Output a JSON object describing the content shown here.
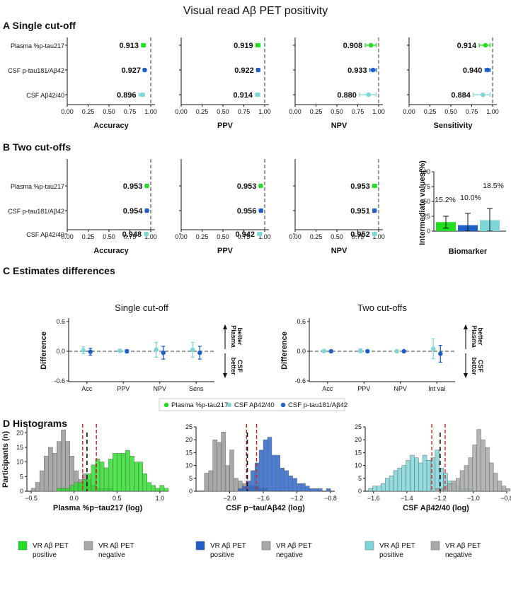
{
  "title": "Visual read Aβ PET positivity",
  "colors": {
    "plasma": "#22dd22",
    "csf_ptau": "#1f5fc8",
    "csf_ab": "#7fd6d9",
    "gray": "#a8a8a8",
    "cutoff_red": "#cc2222",
    "cutoff_black": "#111111"
  },
  "biomarkers": [
    "Plasma %p-tau217",
    "CSF p-tau181/Aβ42",
    "CSF Aβ42/40"
  ],
  "chart_data": [
    {
      "id": "A",
      "type": "scatter",
      "title": "A Single cut-off",
      "rows": [
        "Plasma %p-tau217",
        "CSF p-tau181/Aβ42",
        "CSF Aβ42/40"
      ],
      "xlim": [
        0,
        1
      ],
      "xticks": [
        "0.00",
        "0.25",
        "0.50",
        "0.75",
        "1.00"
      ],
      "reference_line": 1.0,
      "panels": [
        {
          "xlabel": "Accuracy",
          "values": [
            0.913,
            0.927,
            0.896
          ],
          "labels": [
            "0.913",
            "0.927",
            "0.896"
          ],
          "ci_low": [
            0.89,
            0.915,
            0.86
          ],
          "ci_high": [
            0.935,
            0.94,
            0.925
          ]
        },
        {
          "xlabel": "PPV",
          "values": [
            0.919,
            0.922,
            0.914
          ],
          "labels": [
            "0.919",
            "0.922",
            "0.914"
          ],
          "ci_low": [
            0.895,
            0.905,
            0.89
          ],
          "ci_high": [
            0.945,
            0.94,
            0.94
          ]
        },
        {
          "xlabel": "NPV",
          "values": [
            0.908,
            0.933,
            0.88
          ],
          "labels": [
            "0.908",
            "0.933",
            "0.880"
          ],
          "ci_low": [
            0.84,
            0.895,
            0.77
          ],
          "ci_high": [
            0.97,
            0.97,
            0.97
          ]
        },
        {
          "xlabel": "Sensitivity",
          "values": [
            0.914,
            0.94,
            0.884
          ],
          "labels": [
            "0.914",
            "0.940",
            "0.884"
          ],
          "ci_low": [
            0.84,
            0.91,
            0.77
          ],
          "ci_high": [
            0.97,
            0.97,
            0.97
          ]
        }
      ]
    },
    {
      "id": "B",
      "type": "scatter",
      "title": "B Two cut-offs",
      "rows": [
        "Plasma %p-tau217",
        "CSF p-tau181/Aβ42",
        "CSF Aβ42/40"
      ],
      "xlim": [
        0,
        1
      ],
      "xticks": [
        "0.00",
        "0.25",
        "0.50",
        "0.75",
        "1.00"
      ],
      "reference_line": 1.0,
      "panels": [
        {
          "xlabel": "Accuracy",
          "values": [
            0.953,
            0.954,
            0.948
          ],
          "labels": [
            "0.953",
            "0.954",
            "0.948"
          ],
          "ci_low": [
            0.935,
            0.935,
            0.925
          ],
          "ci_high": [
            0.97,
            0.97,
            0.965
          ]
        },
        {
          "xlabel": "PPV",
          "values": [
            0.953,
            0.956,
            0.942
          ],
          "labels": [
            "0.953",
            "0.956",
            "0.942"
          ],
          "ci_low": [
            0.935,
            0.935,
            0.915
          ],
          "ci_high": [
            0.97,
            0.975,
            0.965
          ]
        },
        {
          "xlabel": "NPV",
          "values": [
            0.953,
            0.951,
            0.952
          ],
          "labels": [
            "0.953",
            "0.951",
            "0.952"
          ],
          "ci_low": [
            0.93,
            0.93,
            0.93
          ],
          "ci_high": [
            0.975,
            0.97,
            0.975
          ]
        }
      ]
    },
    {
      "id": "B-bar",
      "type": "bar",
      "ylabel": "Intermediate values(%)",
      "xlabel": "Biomarker",
      "categories": [
        "Plasma %p-tau217",
        "CSF p-tau181/Aβ42",
        "CSF Aβ42/40"
      ],
      "values": [
        15.2,
        10.0,
        18.5
      ],
      "labels": [
        "15.2%",
        "10.0%",
        "18.5%"
      ],
      "ci_low": [
        5,
        0,
        0
      ],
      "ci_high": [
        25,
        30,
        38
      ],
      "ylim": [
        0,
        100
      ],
      "yticks": [
        0,
        25,
        50,
        75,
        100
      ]
    },
    {
      "id": "C",
      "type": "scatter",
      "title": "C Estimates differences",
      "ylabel": "Difference",
      "ylim": [
        -0.6,
        0.6
      ],
      "yticks": [
        "0.6",
        "0.0",
        "-0.6"
      ],
      "arrow_up": "Plasma better",
      "arrow_down": "CSF better",
      "panels": [
        {
          "subtitle": "Single cut-off",
          "categories": [
            "Acc",
            "PPV",
            "NPV",
            "Sens"
          ],
          "csf_ab": [
            0.02,
            0.01,
            0.03,
            0.03
          ],
          "csf_ab_low": [
            -0.05,
            -0.02,
            -0.12,
            -0.12
          ],
          "csf_ab_high": [
            0.09,
            0.04,
            0.18,
            0.18
          ],
          "csf_ptau": [
            -0.01,
            0.0,
            -0.03,
            -0.03
          ],
          "csf_ptau_low": [
            -0.08,
            -0.03,
            -0.16,
            -0.16
          ],
          "csf_ptau_high": [
            0.06,
            0.03,
            0.1,
            0.1
          ]
        },
        {
          "subtitle": "Two cut-offs",
          "categories": [
            "Acc",
            "PPV",
            "NPV",
            "Int val"
          ],
          "csf_ab": [
            0.005,
            0.01,
            0.0,
            0.05
          ],
          "csf_ab_low": [
            -0.02,
            -0.03,
            -0.02,
            -0.15
          ],
          "csf_ab_high": [
            0.03,
            0.05,
            0.02,
            0.25
          ],
          "csf_ptau": [
            0.0,
            0.0,
            0.0,
            -0.05
          ],
          "csf_ptau_low": [
            -0.02,
            -0.02,
            -0.02,
            -0.22
          ],
          "csf_ptau_high": [
            0.02,
            0.02,
            0.02,
            0.12
          ]
        }
      ],
      "legend": [
        "Plasma %p-tau217",
        "CSF Aβ42/40",
        "CSF p-tau181/Aβ42"
      ]
    },
    {
      "id": "D",
      "type": "bar",
      "title": "D Histograms",
      "ylabel": "Participants (n)",
      "panels": [
        {
          "xlabel": "Plasma %p−tau217 (log)",
          "xlim": [
            -0.55,
            1.1
          ],
          "xticks": [
            -0.5,
            0.0,
            0.5,
            1.0
          ],
          "xtick_labels": [
            "−0.5",
            "0.0",
            "0.5",
            "1.0"
          ],
          "ylim": [
            0,
            22
          ],
          "yticks": [
            0,
            5,
            10,
            15,
            20
          ],
          "bin_start": -0.5,
          "bin_width": 0.05,
          "positive_label": "VR Aβ PET positive",
          "negative_label": "VR Aβ PET negative",
          "positive_color": "plasma",
          "negative": [
            1,
            3,
            7,
            12,
            15,
            13,
            17,
            21,
            17,
            12,
            7,
            4,
            6,
            4,
            2,
            1,
            1,
            1,
            1,
            0,
            0,
            0,
            0,
            0,
            0,
            0,
            0,
            0,
            0,
            0,
            0,
            0
          ],
          "positive": [
            0,
            0,
            0,
            0,
            0,
            0,
            1,
            1,
            1,
            2,
            3,
            3,
            4,
            6,
            9,
            11,
            10,
            8,
            11,
            13,
            13,
            13,
            14,
            12,
            10,
            10,
            6,
            3,
            2,
            1,
            2,
            1
          ],
          "red_lines": [
            0.1,
            0.26
          ],
          "black_lines": [
            0.15
          ]
        },
        {
          "xlabel": "CSF p−tau/Aβ42 (log)",
          "xlim": [
            -2.4,
            -0.75
          ],
          "xticks": [
            -2.0,
            -1.6,
            -1.2,
            -0.8
          ],
          "xtick_labels": [
            "−2.0",
            "−1.6",
            "−1.2",
            "−0.8"
          ],
          "ylim": [
            0,
            25
          ],
          "yticks": [
            0,
            5,
            10,
            15,
            20,
            25
          ],
          "bin_start": -2.3,
          "bin_width": 0.05,
          "positive_label": "VR Aβ PET positive",
          "negative_label": "VR Aβ PET negative",
          "positive_color": "csf_ptau",
          "negative": [
            7,
            8,
            20,
            19,
            23,
            10,
            16,
            5,
            4,
            3,
            2,
            2,
            2,
            1,
            1,
            0,
            0,
            0,
            0,
            0,
            0,
            0,
            0,
            0,
            0,
            0,
            0,
            0,
            0,
            0
          ],
          "positive": [
            0,
            0,
            0,
            0,
            0,
            0,
            0,
            0,
            1,
            2,
            4,
            8,
            11,
            16,
            20,
            21,
            14,
            14,
            9,
            8,
            6,
            5,
            3,
            3,
            2,
            1,
            1,
            1,
            0,
            1
          ],
          "red_lines": [
            -1.8,
            -1.68
          ],
          "black_lines": [
            -1.79
          ]
        },
        {
          "xlabel": "CSF Aβ42/40 (log)",
          "xlim": [
            -1.65,
            -0.8
          ],
          "xticks": [
            -1.6,
            -1.4,
            -1.2,
            -1.0,
            -0.8
          ],
          "xtick_labels": [
            "−1.6",
            "−1.4",
            "−1.2",
            "−1.0",
            "−0.8"
          ],
          "ylim": [
            0,
            25
          ],
          "yticks": [
            0,
            5,
            10,
            15,
            20,
            25
          ],
          "bin_start": -1.63,
          "bin_width": 0.025,
          "positive_label": "VR Aβ PET positive",
          "negative_label": "VR Aβ PET negative",
          "positive_color": "csf_ab",
          "positive": [
            1,
            2,
            2,
            3,
            5,
            6,
            8,
            9,
            10,
            12,
            14,
            13,
            11,
            14,
            12,
            13,
            16,
            9,
            7,
            4,
            3,
            2,
            1,
            1,
            1,
            0,
            0,
            0,
            0,
            0,
            0,
            0,
            0,
            0
          ],
          "negative": [
            0,
            0,
            0,
            0,
            0,
            0,
            0,
            0,
            0,
            0,
            0,
            0,
            0,
            0,
            0,
            0,
            1,
            1,
            2,
            3,
            4,
            5,
            8,
            10,
            13,
            18,
            24,
            20,
            17,
            11,
            7,
            4,
            2,
            1
          ],
          "red_lines": [
            -1.25,
            -1.17
          ],
          "black_lines": [
            -1.2
          ]
        }
      ]
    }
  ]
}
